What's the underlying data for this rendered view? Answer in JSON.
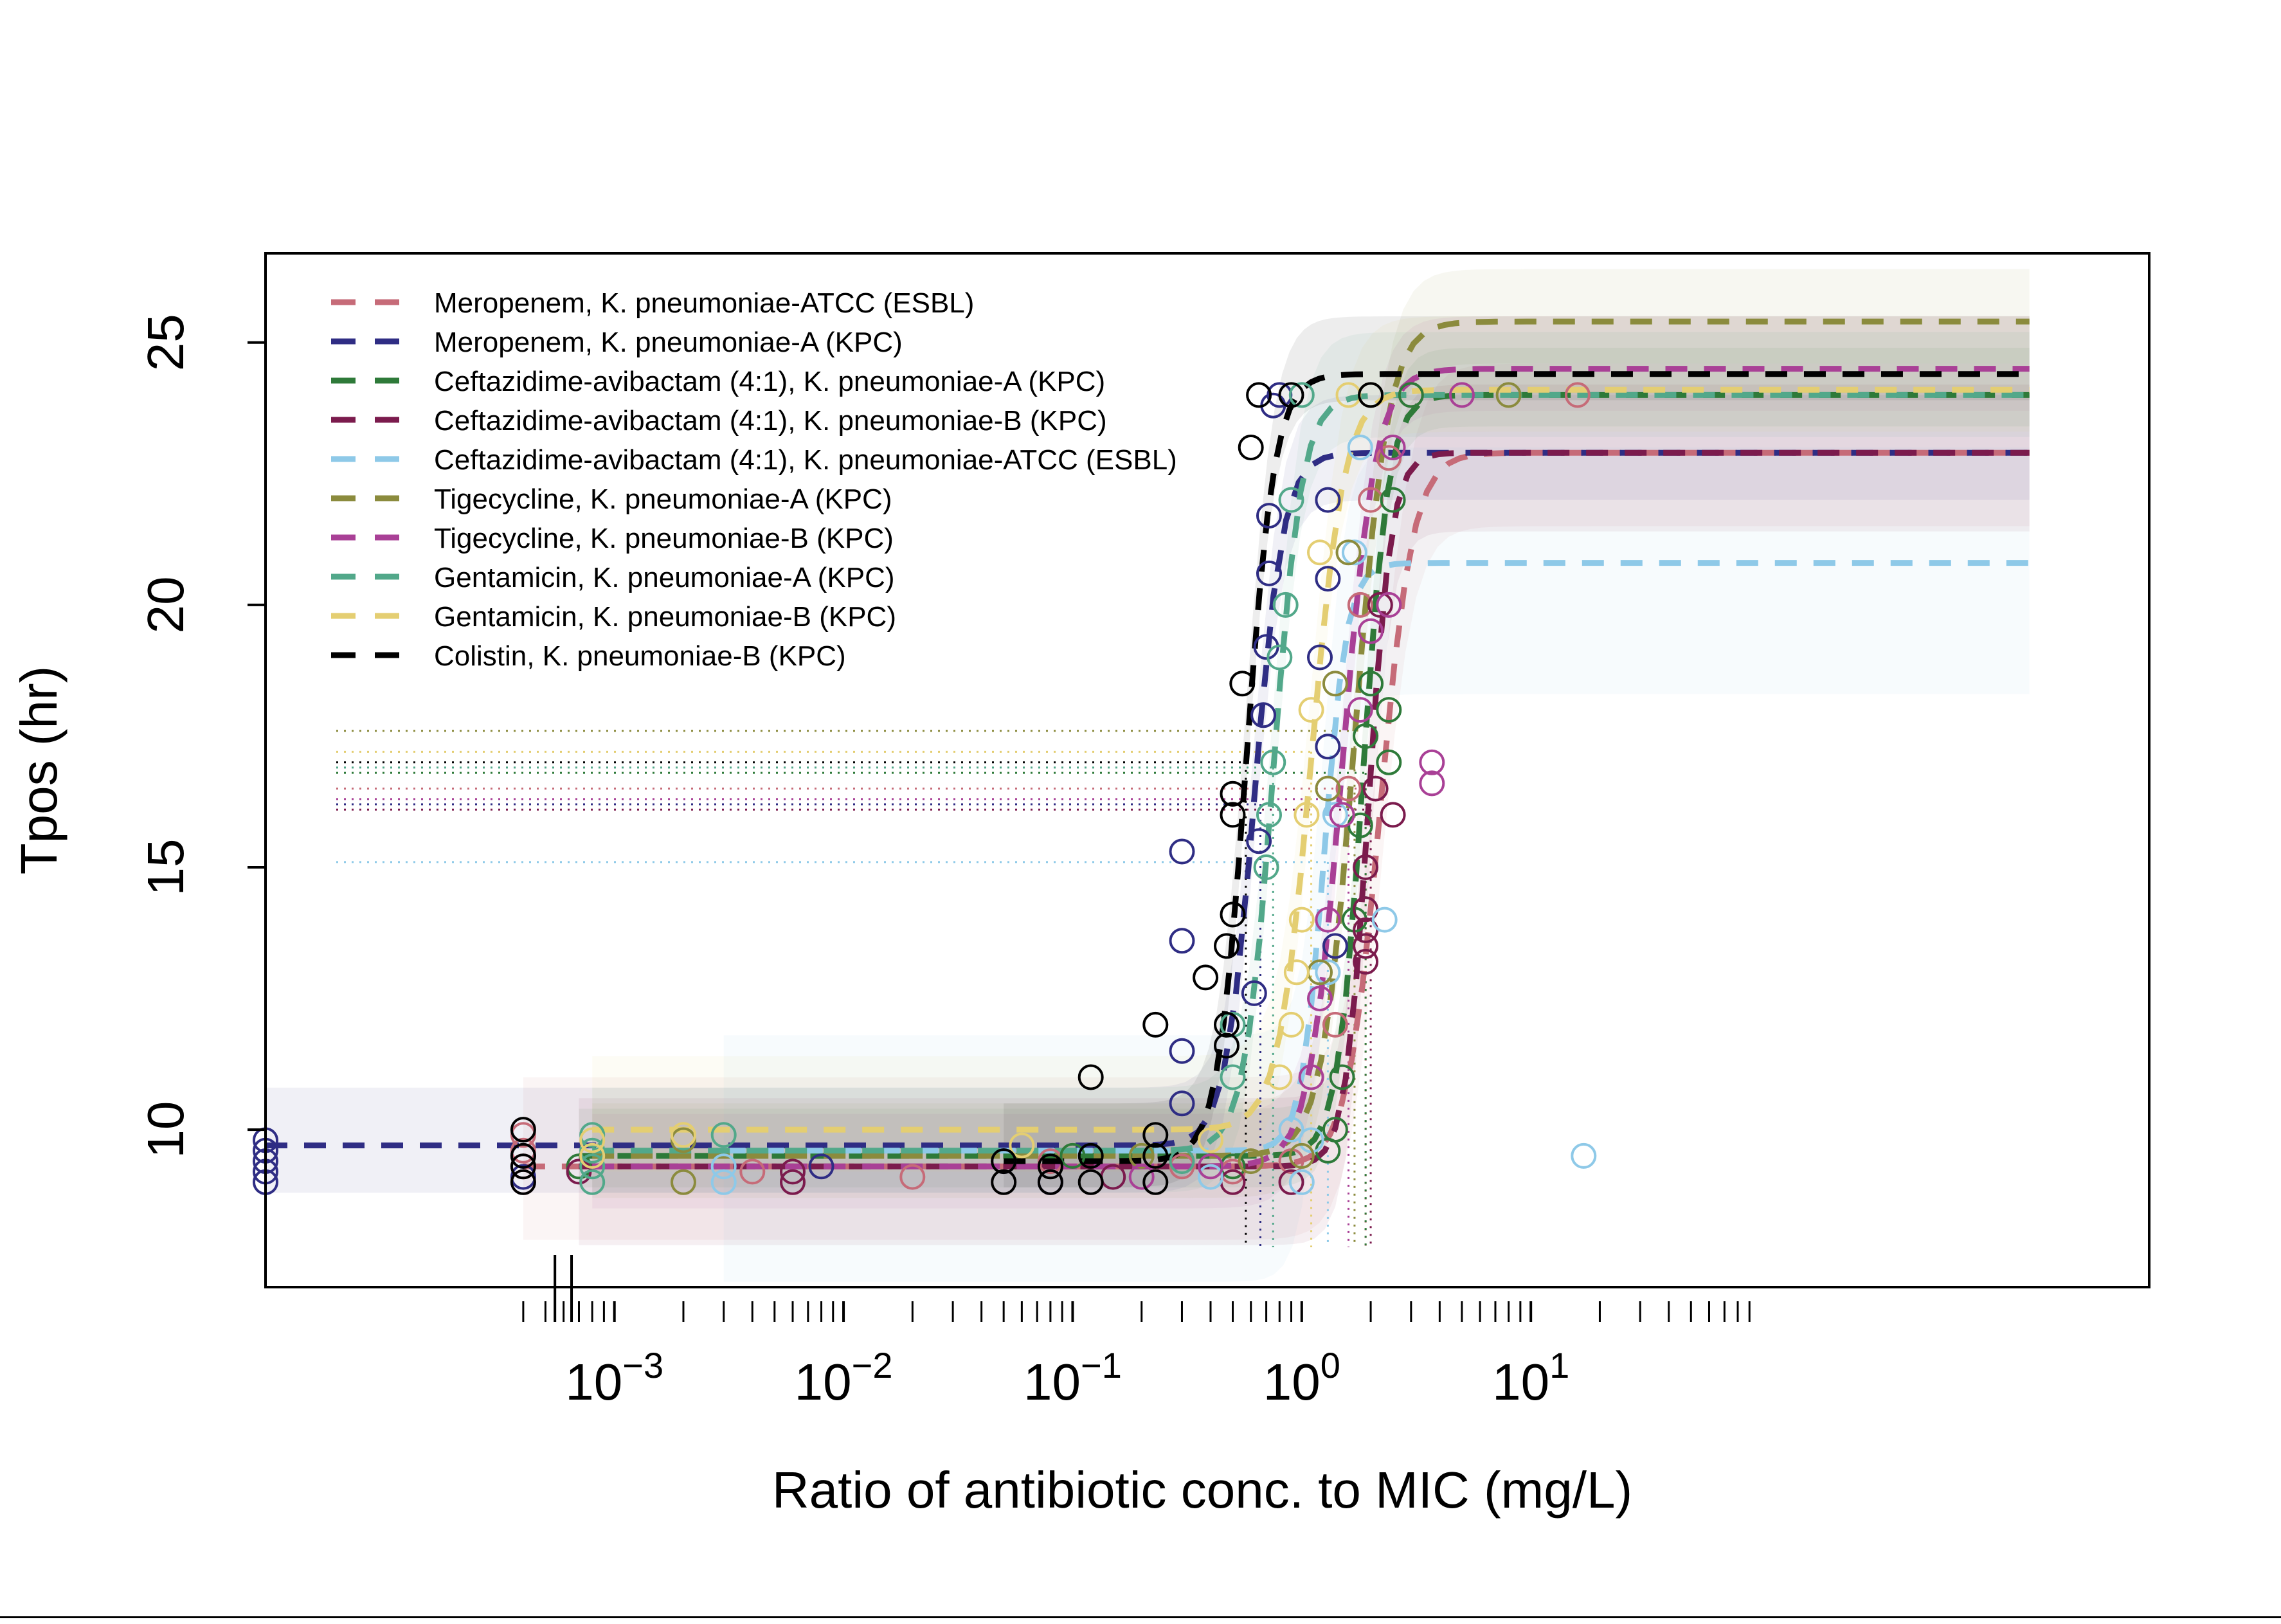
{
  "chart_data": {
    "type": "scatter",
    "xlabel": "Ratio of antibiotic conc. to MIC (mg/L)",
    "ylabel": "Tpos (hr)",
    "x_scale": "log10",
    "xlim": [
      3e-05,
      5000
    ],
    "ylim": [
      7.0,
      26.7
    ],
    "x_tick_labels": [
      {
        "value": 0.001,
        "base": "10",
        "exp": "−3"
      },
      {
        "value": 0.01,
        "base": "10",
        "exp": "−2"
      },
      {
        "value": 0.1,
        "base": "10",
        "exp": "−1"
      },
      {
        "value": 1,
        "base": "10",
        "exp": "0"
      },
      {
        "value": 10,
        "base": "10",
        "exp": "1"
      }
    ],
    "y_ticks": [
      10,
      15,
      20,
      25
    ],
    "legend_position": "top-left",
    "series": [
      {
        "name": "Meropenem, K. pneumoniae-ATCC (ESBL)",
        "color": "#c66b78",
        "curve": {
          "low": 9.3,
          "high": 22.9,
          "mid": 2.2,
          "steep": 14,
          "x_start": 0.0004,
          "x_end": 1500
        },
        "band": {
          "lo": 7.9,
          "hi": 24.6
        },
        "breakpoint": {
          "y": 16.5,
          "x": 1.9
        },
        "points": [
          [
            0.0004,
            9.0
          ],
          [
            0.0004,
            9.3
          ],
          [
            0.0004,
            9.6
          ],
          [
            0.0004,
            9.9
          ],
          [
            0.004,
            9.2
          ],
          [
            0.02,
            9.1
          ],
          [
            0.08,
            9.4
          ],
          [
            0.3,
            9.3
          ],
          [
            0.5,
            9.2
          ],
          [
            0.9,
            9.4
          ],
          [
            1.4,
            12.0
          ],
          [
            1.6,
            16.5
          ],
          [
            1.8,
            20.0
          ],
          [
            2.0,
            22.0
          ],
          [
            2.4,
            22.8
          ],
          [
            3.0,
            24.0
          ],
          [
            16,
            24.0
          ]
        ]
      },
      {
        "name": "Meropenem, K. pneumoniae-A (KPC)",
        "color": "#2f2d84",
        "curve": {
          "low": 9.7,
          "high": 22.9,
          "mid": 0.62,
          "steep": 16,
          "x_start": 3e-05,
          "x_end": 1500
        },
        "band": {
          "lo": 8.8,
          "hi": 24.0
        },
        "breakpoint": {
          "y": 16.2,
          "x": 0.66
        },
        "points": [
          [
            3e-05,
            9.0
          ],
          [
            3e-05,
            9.2
          ],
          [
            3e-05,
            9.4
          ],
          [
            3e-05,
            9.6
          ],
          [
            3e-05,
            9.8
          ],
          [
            0.0004,
            9.1
          ],
          [
            0.0004,
            9.5
          ],
          [
            0.008,
            9.3
          ],
          [
            0.05,
            9.4
          ],
          [
            0.08,
            9.0
          ],
          [
            0.3,
            10.5
          ],
          [
            0.3,
            11.5
          ],
          [
            0.3,
            13.6
          ],
          [
            0.3,
            15.3
          ],
          [
            0.62,
            12.6
          ],
          [
            0.65,
            15.5
          ],
          [
            0.68,
            17.9
          ],
          [
            0.7,
            19.2
          ],
          [
            0.72,
            20.6
          ],
          [
            0.72,
            21.7
          ],
          [
            0.75,
            23.8
          ],
          [
            0.8,
            24.0
          ],
          [
            1.2,
            19.0
          ],
          [
            1.3,
            20.5
          ],
          [
            1.3,
            22.0
          ],
          [
            1.3,
            17.3
          ],
          [
            1.4,
            13.5
          ]
        ]
      },
      {
        "name": "Ceftazidime-avibactam (4:1), K. pneumoniae-A (KPC)",
        "color": "#2e7a39",
        "curve": {
          "low": 9.5,
          "high": 24.0,
          "mid": 1.85,
          "steep": 18,
          "x_start": 0.0007,
          "x_end": 1500
        },
        "band": {
          "lo": 8.9,
          "hi": 24.9
        },
        "breakpoint": {
          "y": 16.8,
          "x": 1.9
        },
        "points": [
          [
            0.0007,
            9.3
          ],
          [
            0.1,
            9.5
          ],
          [
            0.5,
            9.3
          ],
          [
            1.3,
            9.6
          ],
          [
            1.4,
            10.0
          ],
          [
            1.5,
            11.0
          ],
          [
            1.7,
            14.0
          ],
          [
            1.8,
            15.8
          ],
          [
            1.9,
            17.5
          ],
          [
            2.0,
            18.5
          ],
          [
            2.4,
            17.0
          ],
          [
            2.4,
            18.0
          ],
          [
            2.5,
            22.0
          ],
          [
            3.0,
            24.0
          ]
        ]
      },
      {
        "name": "Ceftazidime-avibactam (4:1), K. pneumoniae-B (KPC)",
        "color": "#7b1b4d",
        "curve": {
          "low": 9.3,
          "high": 22.9,
          "mid": 1.95,
          "steep": 20,
          "x_start": 0.0007,
          "x_end": 1500
        },
        "band": {
          "lo": 7.8,
          "hi": 24.2
        },
        "breakpoint": {
          "y": 16.1,
          "x": 2.0
        },
        "points": [
          [
            0.0007,
            9.2
          ],
          [
            0.006,
            9.0
          ],
          [
            0.006,
            9.2
          ],
          [
            0.15,
            9.1
          ],
          [
            0.5,
            9.0
          ],
          [
            0.9,
            9.0
          ],
          [
            1.9,
            13.2
          ],
          [
            1.9,
            13.5
          ],
          [
            1.9,
            13.8
          ],
          [
            1.9,
            14.2
          ],
          [
            1.9,
            15.0
          ],
          [
            2.1,
            16.5
          ],
          [
            2.2,
            20.0
          ],
          [
            2.5,
            16.0
          ]
        ]
      },
      {
        "name": "Ceftazidime-avibactam (4:1), K. pneumoniae-ATCC (ESBL)",
        "color": "#8ec9e8",
        "curve": {
          "low": 9.6,
          "high": 20.8,
          "mid": 1.25,
          "steep": 20,
          "x_start": 0.003,
          "x_end": 1500
        },
        "band": {
          "lo": 7.1,
          "hi": 23.0
        },
        "breakpoint": {
          "y": 15.1,
          "x": 1.3
        },
        "points": [
          [
            0.003,
            9.0
          ],
          [
            0.003,
            9.3
          ],
          [
            0.4,
            9.1
          ],
          [
            0.9,
            10.0
          ],
          [
            1.0,
            9.0
          ],
          [
            1.1,
            9.8
          ],
          [
            1.3,
            13.0
          ],
          [
            1.4,
            16.0
          ],
          [
            1.7,
            21.0
          ],
          [
            1.8,
            23.0
          ],
          [
            2.3,
            14.0
          ],
          [
            17,
            9.5
          ]
        ]
      },
      {
        "name": "Tigecycline, K. pneumoniae-A (KPC)",
        "color": "#8b8b3d",
        "curve": {
          "low": 9.5,
          "high": 25.4,
          "mid": 1.7,
          "steep": 14,
          "x_start": 0.0008,
          "x_end": 1500
        },
        "band": {
          "lo": 8.7,
          "hi": 26.4
        },
        "breakpoint": {
          "y": 17.6,
          "x": 1.7
        },
        "points": [
          [
            0.002,
            9.0
          ],
          [
            0.002,
            9.8
          ],
          [
            0.2,
            9.5
          ],
          [
            0.6,
            9.4
          ],
          [
            1.0,
            9.5
          ],
          [
            1.2,
            13.0
          ],
          [
            1.3,
            16.5
          ],
          [
            1.4,
            18.5
          ],
          [
            1.6,
            21.0
          ],
          [
            2.0,
            24.0
          ],
          [
            8,
            24.0
          ]
        ]
      },
      {
        "name": "Tigecycline, K. pneumoniae-B (KPC)",
        "color": "#a94096",
        "curve": {
          "low": 9.3,
          "high": 24.5,
          "mid": 1.5,
          "steep": 14,
          "x_start": 0.0008,
          "x_end": 1500
        },
        "band": {
          "lo": 8.5,
          "hi": 25.5
        },
        "breakpoint": {
          "y": 16.3,
          "x": 1.6
        },
        "points": [
          [
            0.0008,
            9.5
          ],
          [
            0.2,
            9.1
          ],
          [
            0.4,
            9.3
          ],
          [
            1.1,
            11.0
          ],
          [
            1.2,
            12.5
          ],
          [
            1.3,
            14.0
          ],
          [
            1.5,
            16.0
          ],
          [
            1.8,
            18.0
          ],
          [
            2.0,
            19.5
          ],
          [
            2.4,
            20.0
          ],
          [
            2.5,
            23.0
          ],
          [
            3.7,
            16.6
          ],
          [
            3.7,
            17.0
          ],
          [
            5.0,
            24.0
          ]
        ]
      },
      {
        "name": "Gentamicin, K. pneumoniae-A (KPC)",
        "color": "#52a88a",
        "curve": {
          "low": 9.6,
          "high": 24.0,
          "mid": 0.75,
          "steep": 16,
          "x_start": 0.0008,
          "x_end": 1500
        },
        "band": {
          "lo": 8.8,
          "hi": 25.2
        },
        "breakpoint": {
          "y": 16.9,
          "x": 0.75
        },
        "points": [
          [
            0.0008,
            9.0
          ],
          [
            0.0008,
            9.3
          ],
          [
            0.0008,
            9.6
          ],
          [
            0.0008,
            9.9
          ],
          [
            0.003,
            9.9
          ],
          [
            0.3,
            9.4
          ],
          [
            0.5,
            11.0
          ],
          [
            0.5,
            12.0
          ],
          [
            0.7,
            15.0
          ],
          [
            0.72,
            16.0
          ],
          [
            0.75,
            17.0
          ],
          [
            0.8,
            19.0
          ],
          [
            0.85,
            20.0
          ],
          [
            0.9,
            22.0
          ],
          [
            1.0,
            24.0
          ]
        ]
      },
      {
        "name": "Gentamicin, K. pneumoniae-B (KPC)",
        "color": "#e4ce72",
        "curve": {
          "low": 10.0,
          "high": 24.1,
          "mid": 1.1,
          "steep": 14,
          "x_start": 0.0008,
          "x_end": 1500
        },
        "band": {
          "lo": 9.2,
          "hi": 25.5
        },
        "breakpoint": {
          "y": 17.2,
          "x": 1.1
        },
        "points": [
          [
            0.0008,
            9.5
          ],
          [
            0.0008,
            9.8
          ],
          [
            0.002,
            9.9
          ],
          [
            0.06,
            9.7
          ],
          [
            0.4,
            9.8
          ],
          [
            0.8,
            11.0
          ],
          [
            0.9,
            12.0
          ],
          [
            0.95,
            13.0
          ],
          [
            1.0,
            14.0
          ],
          [
            1.05,
            16.0
          ],
          [
            1.1,
            18.0
          ],
          [
            1.2,
            21.0
          ],
          [
            1.6,
            24.0
          ]
        ]
      },
      {
        "name": "Colistin, K. pneumoniae-B (KPC)",
        "color": "#000000",
        "curve": {
          "low": 9.4,
          "high": 24.4,
          "mid": 0.57,
          "steep": 16,
          "x_start": 0.05,
          "x_end": 1500
        },
        "band": {
          "lo": 8.9,
          "hi": 25.5
        },
        "breakpoint": {
          "y": 17.0,
          "x": 0.57
        },
        "points": [
          [
            0.0004,
            9.0
          ],
          [
            0.0004,
            9.3
          ],
          [
            0.0004,
            9.5
          ],
          [
            0.0004,
            10.0
          ],
          [
            0.05,
            9.0
          ],
          [
            0.05,
            9.4
          ],
          [
            0.08,
            9.0
          ],
          [
            0.08,
            9.3
          ],
          [
            0.12,
            9.0
          ],
          [
            0.12,
            9.5
          ],
          [
            0.12,
            11.0
          ],
          [
            0.23,
            9.0
          ],
          [
            0.23,
            9.5
          ],
          [
            0.23,
            9.9
          ],
          [
            0.23,
            12.0
          ],
          [
            0.38,
            12.9
          ],
          [
            0.47,
            11.6
          ],
          [
            0.47,
            12.0
          ],
          [
            0.47,
            13.5
          ],
          [
            0.5,
            14.1
          ],
          [
            0.5,
            16.0
          ],
          [
            0.5,
            16.4
          ],
          [
            0.55,
            18.5
          ],
          [
            0.6,
            23.0
          ],
          [
            0.65,
            24.0
          ],
          [
            0.9,
            24.0
          ],
          [
            2.0,
            24.0
          ]
        ]
      }
    ]
  }
}
